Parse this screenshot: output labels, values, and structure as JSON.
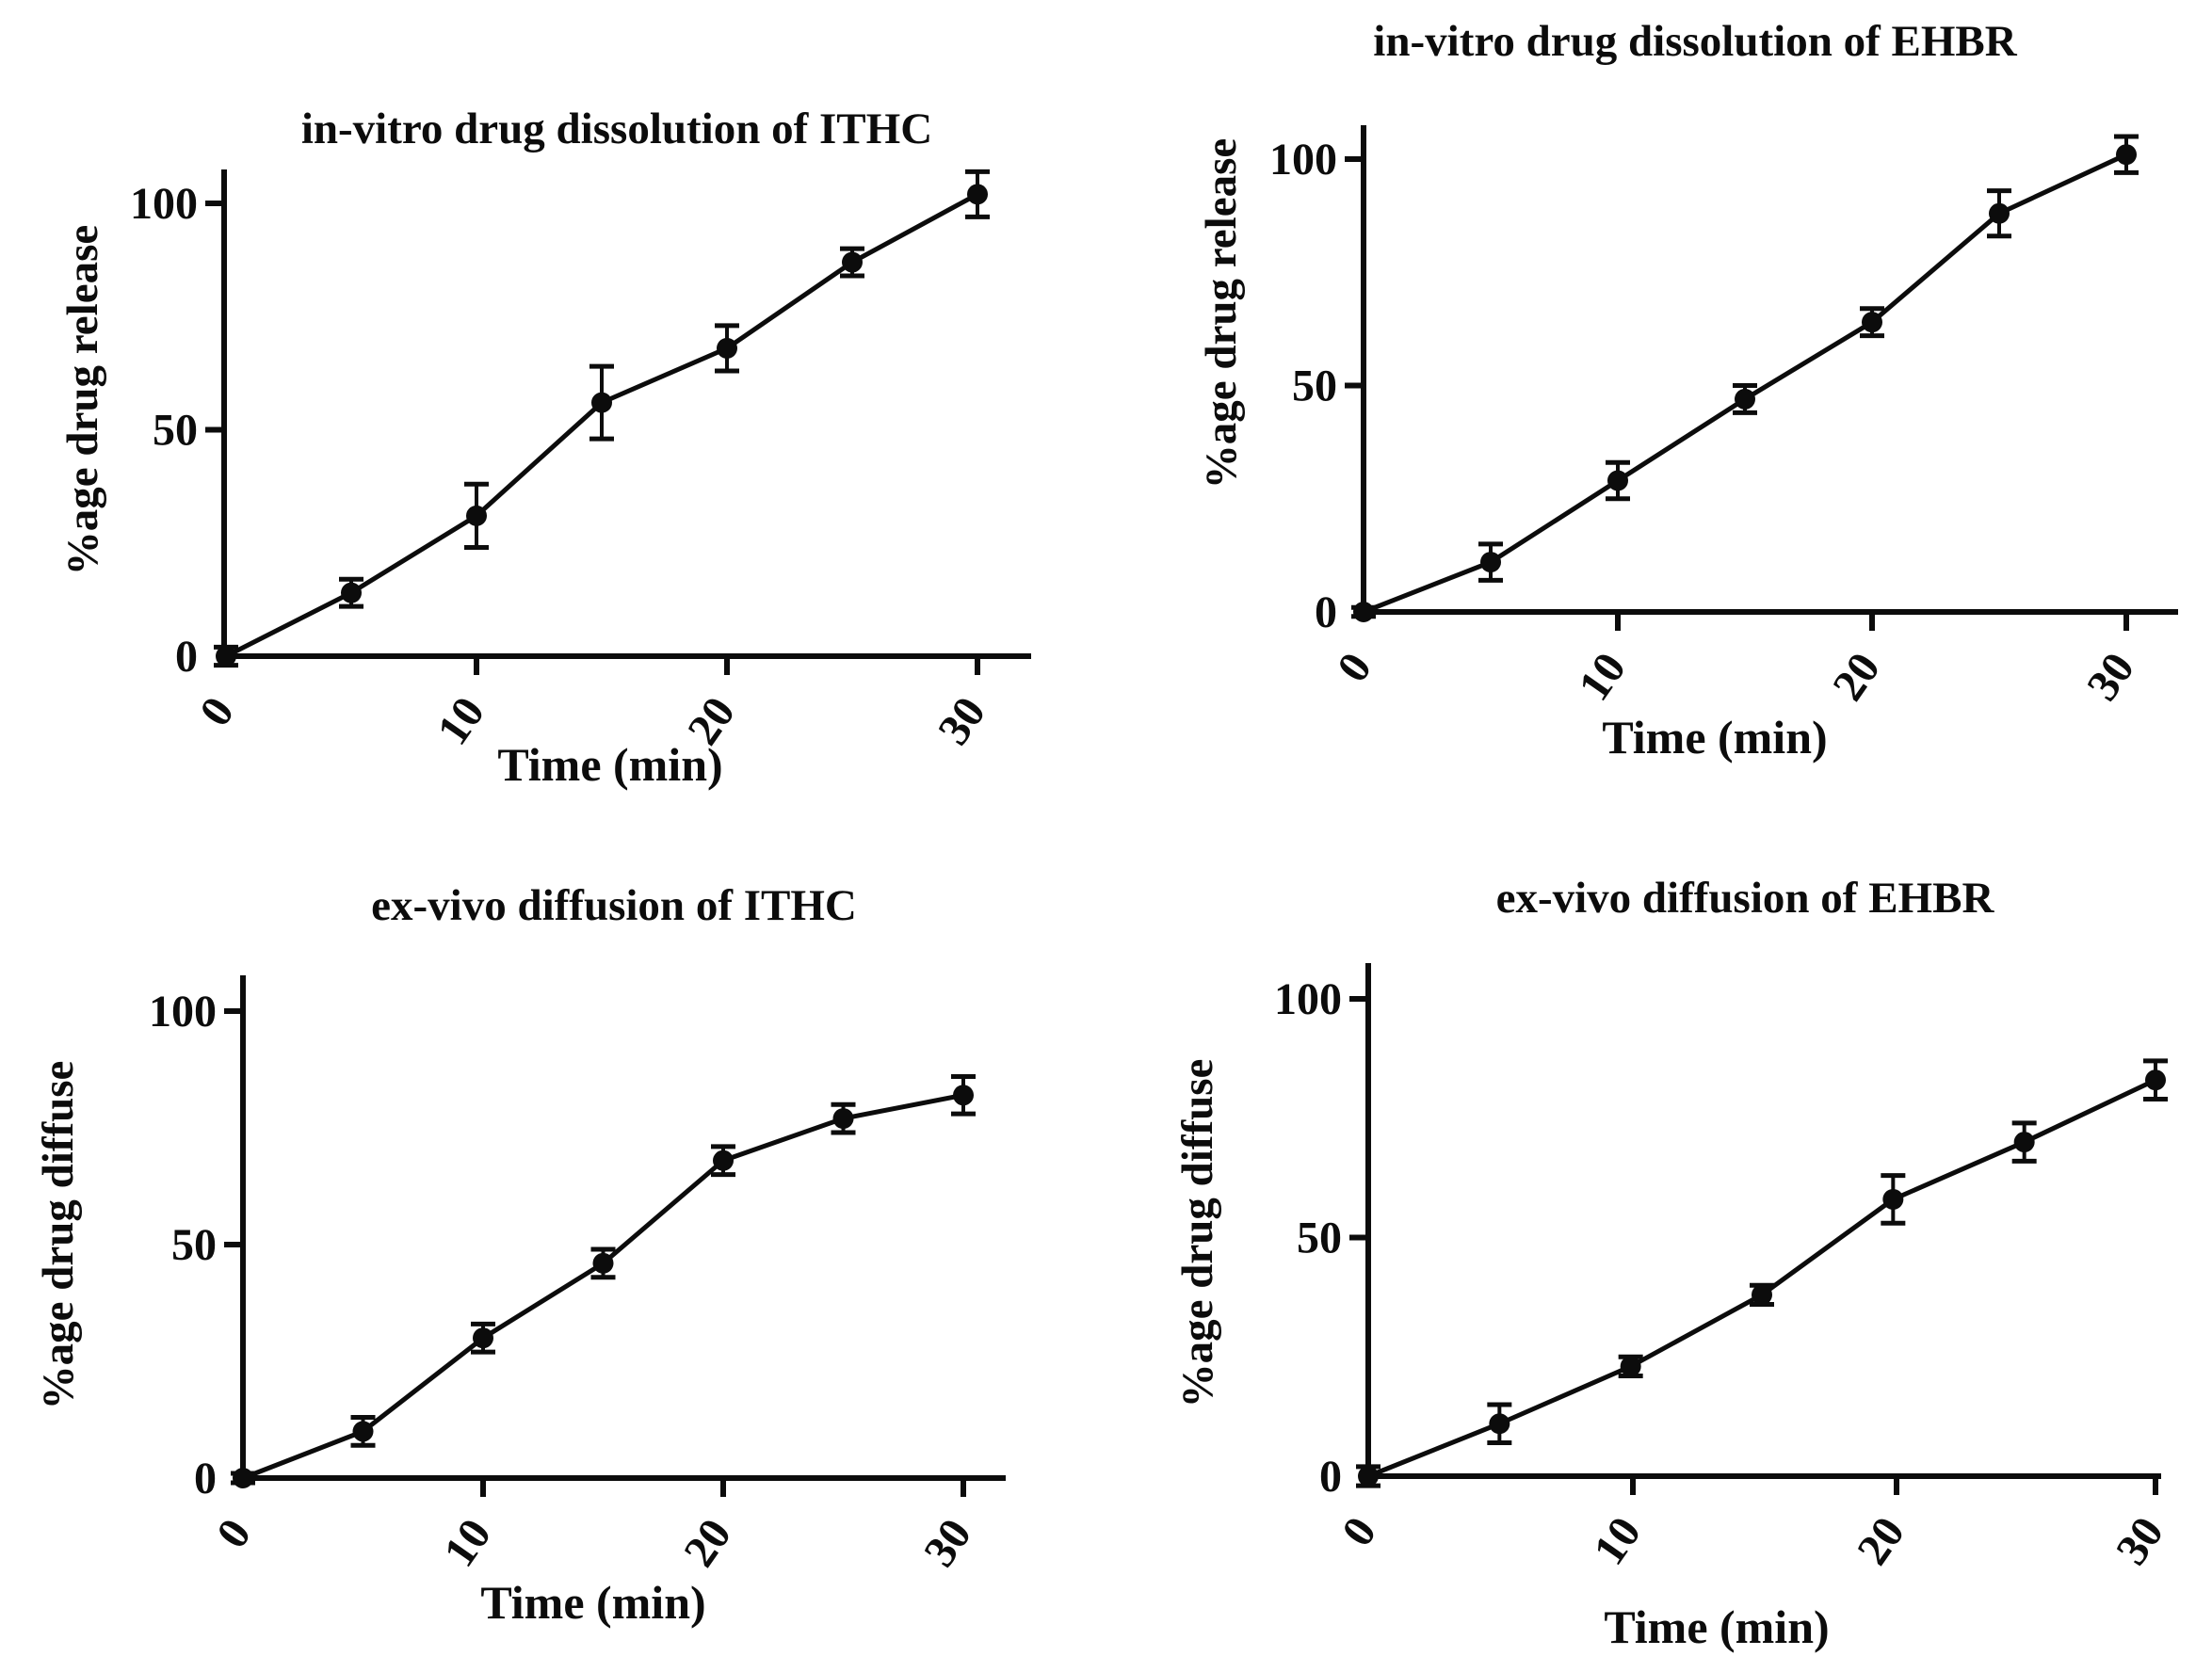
{
  "page": {
    "background": "#ffffff",
    "ink_color": "#0c0c0c",
    "layout": "2x2 panel of line charts"
  },
  "chart_data": [
    {
      "type": "line",
      "position": "top-left",
      "title": "in-vitro drug dissolution of ITHC",
      "xlabel": "Time (min)",
      "ylabel": "%age drug release",
      "x": [
        0,
        5,
        10,
        15,
        20,
        25,
        30
      ],
      "y": [
        0,
        14,
        31,
        56,
        68,
        87,
        102
      ],
      "yerr": [
        2,
        3,
        7,
        8,
        5,
        3,
        5
      ],
      "x_ticks": [
        0,
        10,
        20,
        30
      ],
      "y_ticks": [
        0,
        50,
        100
      ],
      "xlim": [
        0,
        32
      ],
      "ylim": [
        0,
        112
      ],
      "grid": false,
      "legend": null,
      "marker": "filled-circle",
      "error_bars": true,
      "line_color": "#0c0c0c"
    },
    {
      "type": "line",
      "position": "top-right",
      "title": "in-vitro drug dissolution of EHBR",
      "xlabel": "Time (min)",
      "ylabel": "%age drug release",
      "x": [
        0,
        5,
        10,
        15,
        20,
        25,
        30
      ],
      "y": [
        0,
        11,
        29,
        47,
        64,
        88,
        101
      ],
      "yerr": [
        1,
        4,
        4,
        3,
        3,
        5,
        4
      ],
      "x_ticks": [
        0,
        10,
        20,
        30
      ],
      "y_ticks": [
        0,
        50,
        100
      ],
      "xlim": [
        0,
        32
      ],
      "ylim": [
        0,
        112
      ],
      "grid": false,
      "legend": null,
      "marker": "filled-circle",
      "error_bars": true,
      "line_color": "#0c0c0c"
    },
    {
      "type": "line",
      "position": "bottom-left",
      "title": "ex-vivo diffusion of ITHC",
      "xlabel": "Time (min)",
      "ylabel": "%age drug diffuse",
      "x": [
        0,
        5,
        10,
        15,
        20,
        25,
        30
      ],
      "y": [
        0,
        10,
        30,
        46,
        68,
        77,
        82
      ],
      "yerr": [
        1,
        3,
        3,
        3,
        3,
        3,
        4
      ],
      "x_ticks": [
        0,
        10,
        20,
        30
      ],
      "y_ticks": [
        0,
        50,
        100
      ],
      "xlim": [
        0,
        32
      ],
      "ylim": [
        0,
        112
      ],
      "grid": false,
      "legend": null,
      "marker": "filled-circle",
      "error_bars": true,
      "line_color": "#0c0c0c"
    },
    {
      "type": "line",
      "position": "bottom-right",
      "title": "ex-vivo diffusion of EHBR",
      "xlabel": "Time (min)",
      "ylabel": "%age drug diffuse",
      "x": [
        0,
        5,
        10,
        15,
        20,
        25,
        30
      ],
      "y": [
        0,
        11,
        23,
        38,
        58,
        70,
        83
      ],
      "yerr": [
        2,
        4,
        2,
        2,
        5,
        4,
        4
      ],
      "x_ticks": [
        0,
        10,
        20,
        30
      ],
      "y_ticks": [
        0,
        50,
        100
      ],
      "xlim": [
        0,
        32
      ],
      "ylim": [
        0,
        112
      ],
      "grid": false,
      "legend": null,
      "marker": "filled-circle",
      "error_bars": true,
      "line_color": "#0c0c0c"
    }
  ]
}
